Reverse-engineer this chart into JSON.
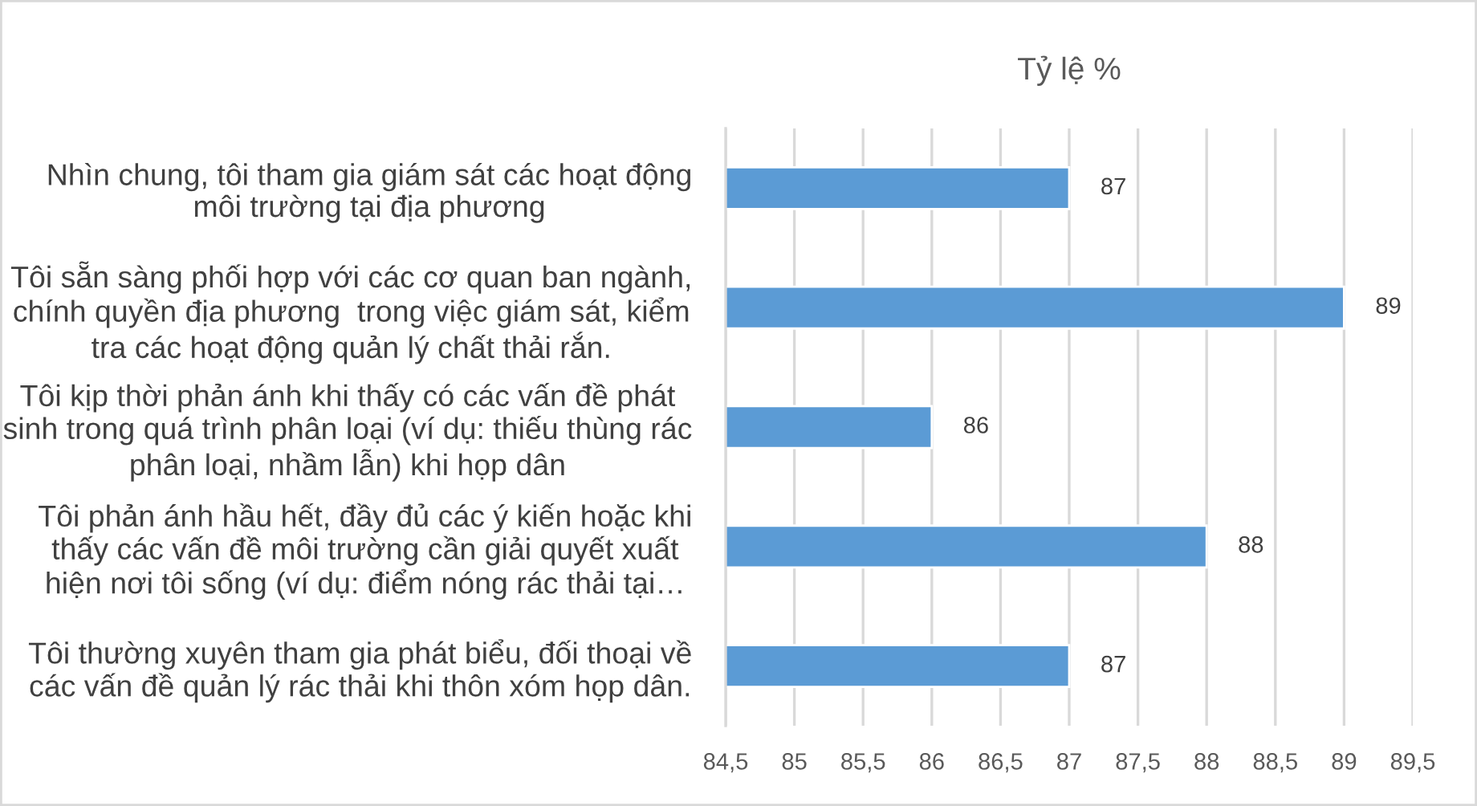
{
  "chart_data": {
    "type": "bar",
    "orientation": "horizontal",
    "title": "Tỷ lệ %",
    "categories": [
      "Nhìn chung, tôi tham gia giám sát các hoạt động môi trường tại địa phương",
      "Tôi sẵn sàng phối hợp với các cơ quan ban ngành, chính quyền địa phương  trong việc giám sát, kiểm tra các hoạt động quản lý chất thải rắn.",
      "Tôi kịp thời phản ánh khi thấy có các vấn đề phát sinh trong quá trình phân loại (ví dụ: thiếu thùng rác phân loại, nhầm lẫn) khi họp dân",
      "Tôi phản ánh hầu hết, đầy đủ các ý kiến hoặc khi thấy các vấn đề môi trường cần giải quyết xuất hiện nơi tôi sống (ví dụ: điểm nóng rác thải tại…",
      "Tôi thường xuyên tham gia phát biểu, đối thoại về các vấn đề quản lý rác thải khi thôn xóm họp dân."
    ],
    "values": [
      87,
      89,
      86,
      88,
      87
    ],
    "color": "#5b9bd5",
    "xlim": [
      84.5,
      89.5
    ],
    "xticks": [
      {
        "value": 84.5,
        "label": "84,5"
      },
      85,
      {
        "value": 85.5,
        "label": "85,5"
      },
      86,
      {
        "value": 86.5,
        "label": "86,5"
      },
      87,
      {
        "value": 87.5,
        "label": "87,5"
      },
      88,
      {
        "value": 88.5,
        "label": "88,5"
      },
      89,
      {
        "value": 89.5,
        "label": "89,5"
      }
    ],
    "grid": "x",
    "data_labels": true
  }
}
